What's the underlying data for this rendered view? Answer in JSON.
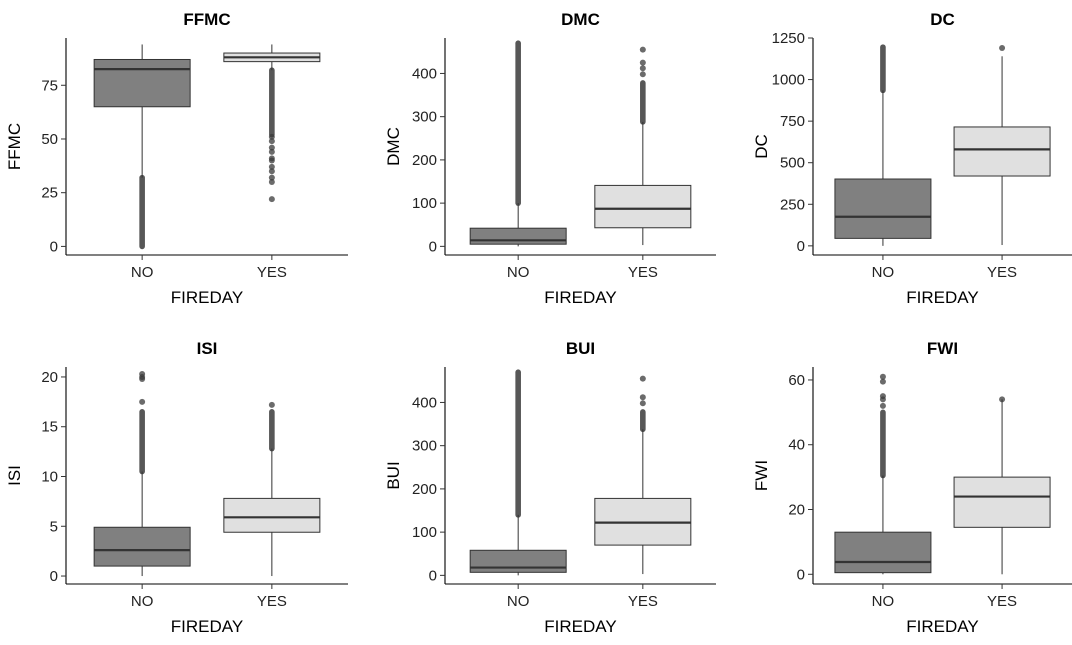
{
  "colors": {
    "NO": "#808080",
    "YES": "#e0e0e0",
    "outlier": "#3a3a3a"
  },
  "chart_data": [
    {
      "type": "box",
      "title": "FFMC",
      "xlabel": "FIREDAY",
      "ylabel": "FFMC",
      "ylim": [
        -4,
        97
      ],
      "yticks": [
        0,
        25,
        50,
        75
      ],
      "categories": [
        "NO",
        "YES"
      ],
      "boxes": [
        {
          "category": "NO",
          "whisker_low": 32,
          "q1": 65,
          "median": 82.5,
          "q3": 87,
          "whisker_high": 94,
          "outlier_band": [
            0,
            32
          ],
          "outliers": []
        },
        {
          "category": "YES",
          "whisker_low": 82,
          "q1": 86,
          "median": 88,
          "q3": 90,
          "whisker_high": 94,
          "outlier_band": [
            52,
            82
          ],
          "outliers": [
            51,
            49,
            46,
            44,
            41,
            40,
            37,
            35,
            32,
            30,
            22
          ]
        }
      ]
    },
    {
      "type": "box",
      "title": "DMC",
      "xlabel": "FIREDAY",
      "ylabel": "DMC",
      "ylim": [
        -20,
        482
      ],
      "yticks": [
        0,
        100,
        200,
        300,
        400
      ],
      "categories": [
        "NO",
        "YES"
      ],
      "boxes": [
        {
          "category": "NO",
          "whisker_low": 0,
          "q1": 5,
          "median": 14,
          "q3": 42,
          "whisker_high": 100,
          "outlier_band": [
            100,
            470
          ],
          "outliers": []
        },
        {
          "category": "YES",
          "whisker_low": 3,
          "q1": 43,
          "median": 87,
          "q3": 141,
          "whisker_high": 288,
          "outlier_band": [
            288,
            378
          ],
          "outliers": [
            398,
            412,
            425,
            455
          ]
        }
      ]
    },
    {
      "type": "box",
      "title": "DC",
      "xlabel": "FIREDAY",
      "ylabel": "DC",
      "ylim": [
        -55,
        1250
      ],
      "yticks": [
        0,
        250,
        500,
        750,
        1000,
        1250
      ],
      "categories": [
        "NO",
        "YES"
      ],
      "boxes": [
        {
          "category": "NO",
          "whisker_low": 0,
          "q1": 45,
          "median": 175,
          "q3": 402,
          "whisker_high": 935,
          "outlier_band": [
            935,
            1195
          ],
          "outliers": []
        },
        {
          "category": "YES",
          "whisker_low": 5,
          "q1": 420,
          "median": 580,
          "q3": 715,
          "whisker_high": 1140,
          "outlier_band": null,
          "outliers": [
            1190
          ]
        }
      ]
    },
    {
      "type": "box",
      "title": "ISI",
      "xlabel": "FIREDAY",
      "ylabel": "ISI",
      "ylim": [
        -0.8,
        21
      ],
      "yticks": [
        0,
        5,
        10,
        15,
        20
      ],
      "categories": [
        "NO",
        "YES"
      ],
      "boxes": [
        {
          "category": "NO",
          "whisker_low": 0,
          "q1": 1,
          "median": 2.6,
          "q3": 4.9,
          "whisker_high": 10.5,
          "outlier_band": [
            10.5,
            16.5
          ],
          "outliers": [
            17.5,
            19.8,
            20,
            20.3
          ]
        },
        {
          "category": "YES",
          "whisker_low": 0,
          "q1": 4.4,
          "median": 5.9,
          "q3": 7.8,
          "whisker_high": 12.8,
          "outlier_band": [
            12.8,
            16.5
          ],
          "outliers": [
            17.2
          ]
        }
      ]
    },
    {
      "type": "box",
      "title": "BUI",
      "xlabel": "FIREDAY",
      "ylabel": "BUI",
      "ylim": [
        -20,
        482
      ],
      "yticks": [
        0,
        100,
        200,
        300,
        400
      ],
      "categories": [
        "NO",
        "YES"
      ],
      "boxes": [
        {
          "category": "NO",
          "whisker_low": 0,
          "q1": 7,
          "median": 18,
          "q3": 58,
          "whisker_high": 140,
          "outlier_band": [
            140,
            470
          ],
          "outliers": []
        },
        {
          "category": "YES",
          "whisker_low": 3,
          "q1": 70,
          "median": 122,
          "q3": 178,
          "whisker_high": 338,
          "outlier_band": [
            338,
            378
          ],
          "outliers": [
            398,
            412,
            455
          ]
        }
      ]
    },
    {
      "type": "box",
      "title": "FWI",
      "xlabel": "FIREDAY",
      "ylabel": "FWI",
      "ylim": [
        -3,
        64
      ],
      "yticks": [
        0,
        20,
        40,
        60
      ],
      "categories": [
        "NO",
        "YES"
      ],
      "boxes": [
        {
          "category": "NO",
          "whisker_low": 0,
          "q1": 0.5,
          "median": 3.8,
          "q3": 13,
          "whisker_high": 30.5,
          "outlier_band": [
            30.5,
            50
          ],
          "outliers": [
            52,
            54,
            55,
            59.5,
            61
          ]
        },
        {
          "category": "YES",
          "whisker_low": 0,
          "q1": 14.5,
          "median": 24,
          "q3": 30,
          "whisker_high": 54,
          "outlier_band": null,
          "outliers": [
            54
          ]
        }
      ]
    }
  ]
}
